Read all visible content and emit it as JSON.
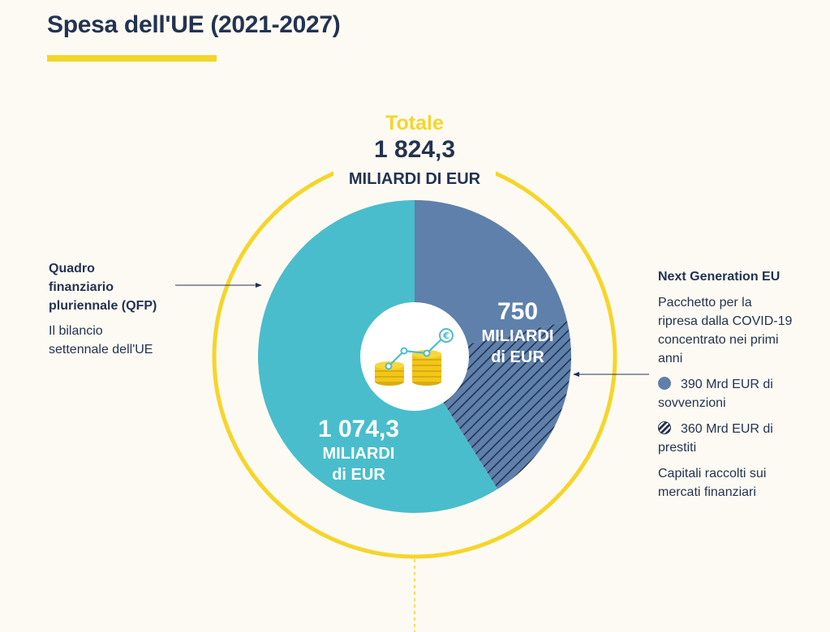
{
  "title": "Spesa dell'UE (2021-2027)",
  "colors": {
    "accent_yellow": "#f6d52a",
    "qfp": "#49bdcc",
    "ngeu": "#5e80ab",
    "navy": "#233350",
    "background": "#fdfaf3"
  },
  "total": {
    "label": "Totale",
    "value": "1 824,3",
    "unit": "MILIARDI DI EUR"
  },
  "segments": {
    "qfp": {
      "value": "1 074,3",
      "unit_line1": "MILIARDI",
      "unit_line2": "di EUR"
    },
    "ngeu": {
      "value": "750",
      "unit_line1": "MILIARDI",
      "unit_line2": "di EUR"
    }
  },
  "qfp_info": {
    "title_line1": "Quadro",
    "title_line2": "finanziario",
    "title_line3": "pluriennale (QFP)",
    "desc_line1": "Il bilancio",
    "desc_line2": "settennale dell'UE"
  },
  "ngeu_info": {
    "title": "Next Generation EU",
    "desc_line1": "Pacchetto per la",
    "desc_line2": "ripresa dalla COVID-19",
    "desc_line3": "concentrato nei primi",
    "desc_line4": "anni",
    "grants_line1": "390 Mrd EUR di",
    "grants_line2": "sovvenzioni",
    "loans_line1": "360 Mrd EUR di",
    "loans_line2": "prestiti",
    "note_line1": "Capitali raccolti sui",
    "note_line2": "mercati finanziari"
  },
  "icons": {
    "center": "coins-growth-euro-icon"
  },
  "chart_data": {
    "type": "pie",
    "title": "Spesa dell'UE (2021-2027)",
    "total": 1824.3,
    "unit": "MILIARDI DI EUR",
    "slices": [
      {
        "name": "Next Generation EU",
        "value": 750,
        "color": "#5e80ab",
        "parts": [
          {
            "name": "sovvenzioni",
            "value": 390,
            "pattern": "solid"
          },
          {
            "name": "prestiti",
            "value": 360,
            "pattern": "hatched"
          }
        ]
      },
      {
        "name": "Quadro finanziario pluriennale (QFP)",
        "value": 1074.3,
        "color": "#49bdcc"
      }
    ]
  }
}
